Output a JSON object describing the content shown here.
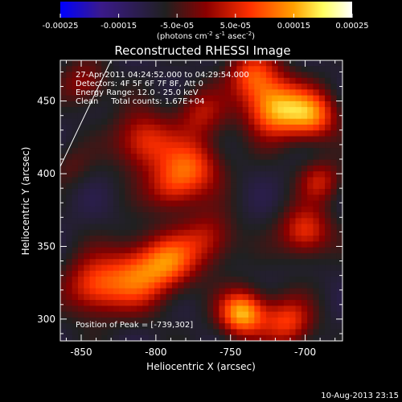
{
  "chart_data": {
    "type": "heatmap",
    "title": "Reconstructed RHESSI Image",
    "xlabel": "Heliocentric X (arcsec)",
    "ylabel": "Heliocentric Y (arcsec)",
    "xlim": [
      -864,
      -675
    ],
    "ylim": [
      285,
      478
    ],
    "xticks": [
      -850,
      -800,
      -750,
      -700
    ],
    "xtick_labels": [
      "-850",
      "-800",
      "-750",
      "-700"
    ],
    "yticks": [
      300,
      350,
      400,
      450
    ],
    "ytick_labels": [
      "300",
      "350",
      "400",
      "450"
    ],
    "colorbar": {
      "range": [
        -0.00025,
        0.00025
      ],
      "ticks": [
        -0.00025,
        -0.00015,
        -5e-05,
        5e-05,
        0.00015,
        0.00025
      ],
      "tick_labels": [
        "-0.00025",
        "-0.00015",
        "-5.0e-05",
        "5.0e-05",
        "0.00015",
        "0.00025"
      ],
      "unit_label": "(photons cm",
      "unit_exp1": "-2",
      "unit_mid": " s",
      "unit_exp2": "-1",
      "unit_mid2": " asec",
      "unit_exp3": "-2",
      "unit_close": ")",
      "colors": [
        "#0000ff",
        "#3a1a8a",
        "#202020",
        "#8a0000",
        "#ff3000",
        "#ffa000",
        "#ffff60",
        "#ffffff"
      ]
    },
    "annotations": {
      "time": "27-Apr-2011 04:24:52.000 to 04:29:54.000",
      "detectors": "Detectors: 4F 5F 6F 7F 8F, Att 0",
      "energy": "Energy Range: 12.0 - 25.0 keV",
      "clean": "Clean     Total counts: 1.67E+04",
      "peak": "Position of Peak = [-739,302]"
    },
    "limb_line": [
      [
        -864,
        405
      ],
      [
        -830,
        478
      ]
    ],
    "sources": [
      {
        "x": -842,
        "y": 322,
        "amp": 0.00016,
        "sigma": 14
      },
      {
        "x": -812,
        "y": 330,
        "amp": 0.00018,
        "sigma": 16
      },
      {
        "x": -790,
        "y": 340,
        "amp": 0.00015,
        "sigma": 13
      },
      {
        "x": -742,
        "y": 304,
        "amp": 0.00025,
        "sigma": 11
      },
      {
        "x": -712,
        "y": 298,
        "amp": 0.00016,
        "sigma": 12
      },
      {
        "x": -765,
        "y": 355,
        "amp": 0.00012,
        "sigma": 13
      },
      {
        "x": -775,
        "y": 405,
        "amp": 0.00016,
        "sigma": 14
      },
      {
        "x": -790,
        "y": 390,
        "amp": 0.00012,
        "sigma": 12
      },
      {
        "x": -808,
        "y": 422,
        "amp": 0.00016,
        "sigma": 14
      },
      {
        "x": -770,
        "y": 442,
        "amp": 0.00011,
        "sigma": 12
      },
      {
        "x": -720,
        "y": 445,
        "amp": 0.00024,
        "sigma": 14
      },
      {
        "x": -695,
        "y": 440,
        "amp": 0.00019,
        "sigma": 12
      },
      {
        "x": -735,
        "y": 468,
        "amp": 0.00016,
        "sigma": 12
      },
      {
        "x": -700,
        "y": 360,
        "amp": 0.00016,
        "sigma": 12
      },
      {
        "x": -690,
        "y": 395,
        "amp": 0.00012,
        "sigma": 10
      },
      {
        "x": -848,
        "y": 462,
        "amp": 0.0001,
        "sigma": 11
      },
      {
        "x": -858,
        "y": 405,
        "amp": 5e-05,
        "sigma": 10
      }
    ],
    "background": -9e-05
  },
  "footer": {
    "date": "10-Aug-2013 23:15"
  }
}
